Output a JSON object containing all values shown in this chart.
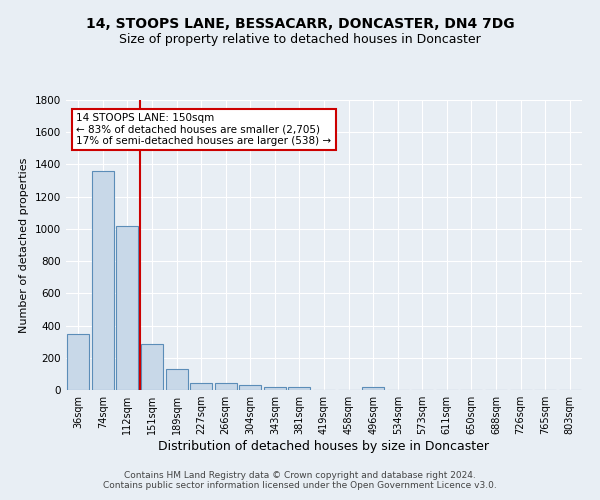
{
  "title": "14, STOOPS LANE, BESSACARR, DONCASTER, DN4 7DG",
  "subtitle": "Size of property relative to detached houses in Doncaster",
  "xlabel": "Distribution of detached houses by size in Doncaster",
  "ylabel": "Number of detached properties",
  "categories": [
    "36sqm",
    "74sqm",
    "112sqm",
    "151sqm",
    "189sqm",
    "227sqm",
    "266sqm",
    "304sqm",
    "343sqm",
    "381sqm",
    "419sqm",
    "458sqm",
    "496sqm",
    "534sqm",
    "573sqm",
    "611sqm",
    "650sqm",
    "688sqm",
    "726sqm",
    "765sqm",
    "803sqm"
  ],
  "values": [
    350,
    1360,
    1020,
    285,
    130,
    43,
    43,
    28,
    18,
    18,
    0,
    0,
    18,
    0,
    0,
    0,
    0,
    0,
    0,
    0,
    0
  ],
  "bar_color": "#c8d8e8",
  "bar_edge_color": "#5b8db8",
  "vline_color": "#cc0000",
  "annotation_text": "14 STOOPS LANE: 150sqm\n← 83% of detached houses are smaller (2,705)\n17% of semi-detached houses are larger (538) →",
  "annotation_box_color": "white",
  "annotation_box_edge": "#cc0000",
  "ylim": [
    0,
    1800
  ],
  "yticks": [
    0,
    200,
    400,
    600,
    800,
    1000,
    1200,
    1400,
    1600,
    1800
  ],
  "bg_color": "#e8eef4",
  "plot_bg_color": "#e8eef4",
  "footer": "Contains HM Land Registry data © Crown copyright and database right 2024.\nContains public sector information licensed under the Open Government Licence v3.0.",
  "title_fontsize": 10,
  "subtitle_fontsize": 9,
  "xlabel_fontsize": 9,
  "ylabel_fontsize": 8,
  "footer_fontsize": 6.5,
  "grid_color": "#ffffff",
  "tick_label_fontsize": 7
}
